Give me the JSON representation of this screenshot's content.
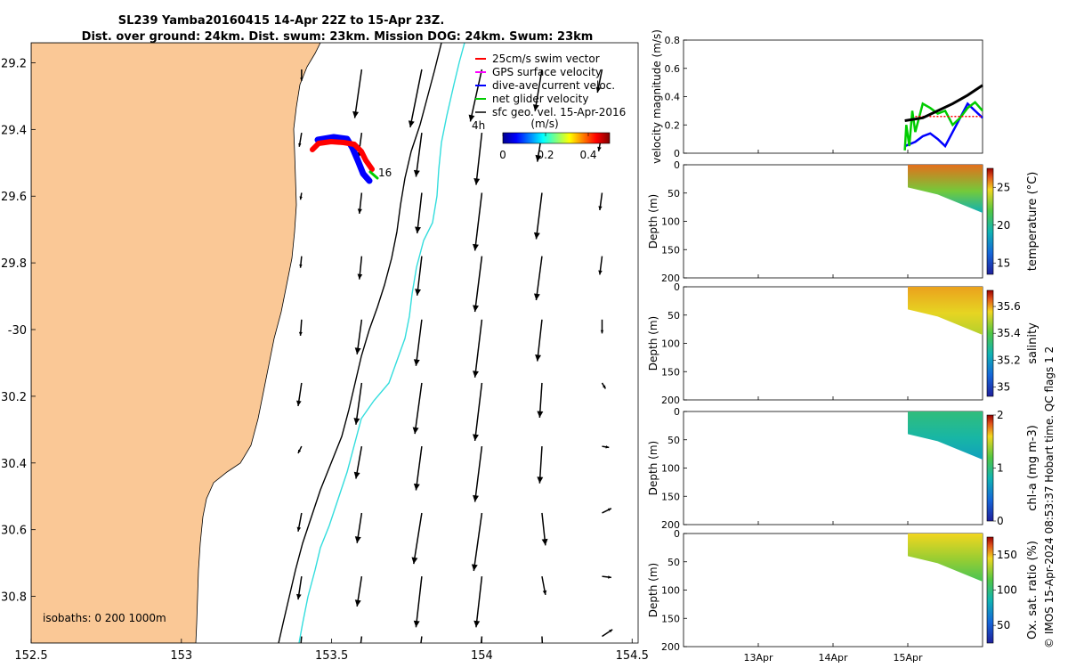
{
  "title": {
    "line1": "SL239 Yamba20160415 14-Apr 22Z to 15-Apr 23Z.",
    "line2": "Dist. over ground: 24km. Dist. swum: 23km. Mission DOG: 24km. Swum: 23km"
  },
  "colors": {
    "land": "#fac896",
    "swim_vector": "#ff0000",
    "gps_velocity": "#ff00ff",
    "dive_avg": "#0000ff",
    "net_glider": "#00cc00",
    "geo_velocity": "#000000",
    "isobath_200": "#000000",
    "isobath_1000": "#33dddd"
  },
  "map": {
    "lon_ticks": [
      "152.5",
      "153",
      "153.5",
      "154",
      "154.5"
    ],
    "lat_ticks": [
      "29.2",
      "29.4",
      "29.6",
      "29.8",
      "-30",
      "30.2",
      "30.4",
      "30.6",
      "30.8"
    ],
    "xlim": [
      152.5,
      154.52
    ],
    "ylim": [
      -30.94,
      -29.14
    ],
    "legend": [
      "25cm/s swim vector",
      "GPS surface velocity",
      "dive-ave current veloc.",
      "net glider velocity",
      "sfc geo. vel. 15-Apr-2016"
    ],
    "track_label": "16",
    "time_label": "4h",
    "colorbar": {
      "unit": "(m/s)",
      "ticks": [
        "0",
        "0.2",
        "0.4"
      ],
      "range": [
        0,
        0.5
      ]
    },
    "isobaths_label": "isobaths: 0   200  1000m",
    "vector_rows": [
      {
        "lat": -29.22,
        "vecs": [
          [
            0,
            -0.1
          ],
          [
            -0.06,
            -0.42
          ],
          [
            -0.1,
            -0.5
          ],
          [
            -0.1,
            -0.45
          ],
          [
            -0.06,
            -0.36
          ],
          [
            -0.04,
            -0.2
          ]
        ]
      },
      {
        "lat": -29.41,
        "vecs": [
          [
            -0.02,
            -0.12
          ],
          [
            -0.03,
            -0.22
          ],
          [
            -0.05,
            -0.38
          ],
          [
            -0.05,
            -0.45
          ],
          [
            -0.04,
            -0.25
          ],
          [
            -0.03,
            -0.16
          ]
        ]
      },
      {
        "lat": -29.59,
        "vecs": [
          [
            -0.01,
            -0.06
          ],
          [
            -0.02,
            -0.18
          ],
          [
            -0.04,
            -0.35
          ],
          [
            -0.06,
            -0.5
          ],
          [
            -0.05,
            -0.4
          ],
          [
            -0.02,
            -0.15
          ]
        ]
      },
      {
        "lat": -29.78,
        "vecs": [
          [
            -0.01,
            -0.1
          ],
          [
            -0.02,
            -0.2
          ],
          [
            -0.04,
            -0.34
          ],
          [
            -0.06,
            -0.48
          ],
          [
            -0.05,
            -0.38
          ],
          [
            -0.02,
            -0.16
          ]
        ]
      },
      {
        "lat": -29.97,
        "vecs": [
          [
            -0.01,
            -0.14
          ],
          [
            -0.04,
            -0.3
          ],
          [
            -0.05,
            -0.4
          ],
          [
            -0.06,
            -0.5
          ],
          [
            -0.04,
            -0.36
          ],
          [
            0,
            -0.12
          ]
        ]
      },
      {
        "lat": -30.16,
        "vecs": [
          [
            -0.03,
            -0.2
          ],
          [
            -0.05,
            -0.36
          ],
          [
            -0.06,
            -0.44
          ],
          [
            -0.06,
            -0.5
          ],
          [
            -0.02,
            -0.3
          ],
          [
            0.03,
            -0.05
          ]
        ]
      },
      {
        "lat": -30.35,
        "vecs": [
          [
            -0.03,
            -0.06
          ],
          [
            -0.05,
            -0.28
          ],
          [
            -0.05,
            -0.38
          ],
          [
            -0.06,
            -0.48
          ],
          [
            -0.02,
            -0.32
          ],
          [
            0.06,
            -0.01
          ]
        ]
      },
      {
        "lat": -30.55,
        "vecs": [
          [
            -0.03,
            -0.16
          ],
          [
            -0.04,
            -0.26
          ],
          [
            -0.07,
            -0.44
          ],
          [
            -0.07,
            -0.5
          ],
          [
            0.03,
            -0.28
          ],
          [
            0.08,
            0.04
          ]
        ]
      },
      {
        "lat": -30.74,
        "vecs": [
          [
            -0.03,
            -0.2
          ],
          [
            -0.04,
            -0.26
          ],
          [
            -0.05,
            -0.44
          ],
          [
            -0.05,
            -0.44
          ],
          [
            0.03,
            -0.16
          ],
          [
            0.08,
            -0.01
          ]
        ]
      },
      {
        "lat": -30.92,
        "vecs": [
          [
            -0.02,
            -0.22
          ],
          [
            -0.03,
            -0.24
          ],
          [
            -0.05,
            -0.4
          ],
          [
            -0.04,
            -0.4
          ],
          [
            0.01,
            -0.2
          ],
          [
            0.09,
            0.06
          ]
        ]
      }
    ],
    "vector_lons": [
      153.4,
      153.6,
      153.8,
      154.0,
      154.2,
      154.4
    ]
  },
  "chart_data": [
    {
      "type": "line",
      "ylabel": "velocity magnitude (m/s)",
      "ylim": [
        0,
        0.8
      ],
      "yticks": [
        "0",
        "0.2",
        "0.4",
        "0.6",
        "0.8"
      ],
      "xlim_days": [
        12.0,
        16.0
      ],
      "series": [
        {
          "color": "#0000ff",
          "x": [
            14.96,
            15.1,
            15.2,
            15.3,
            15.4,
            15.5,
            15.6,
            15.7,
            15.8,
            15.9,
            16.0
          ],
          "y": [
            0.05,
            0.08,
            0.12,
            0.14,
            0.1,
            0.05,
            0.15,
            0.25,
            0.35,
            0.3,
            0.25
          ]
        },
        {
          "color": "#00cc00",
          "x": [
            14.96,
            14.98,
            15.02,
            15.06,
            15.1,
            15.15,
            15.2,
            15.3,
            15.4,
            15.5,
            15.6,
            15.7,
            15.8,
            15.9,
            16.0
          ],
          "y": [
            0.02,
            0.2,
            0.05,
            0.3,
            0.15,
            0.25,
            0.35,
            0.32,
            0.28,
            0.3,
            0.2,
            0.25,
            0.32,
            0.36,
            0.3
          ]
        },
        {
          "color": "#ff0000",
          "x": [
            15.1,
            16.0
          ],
          "y": [
            0.26,
            0.26
          ]
        },
        {
          "color": "#000000",
          "x": [
            14.96,
            15.2,
            15.4,
            15.6,
            15.8,
            16.0
          ],
          "y": [
            0.23,
            0.25,
            0.3,
            0.35,
            0.41,
            0.48
          ]
        }
      ]
    },
    {
      "type": "heatmap",
      "ylabel": "Depth (m)",
      "cbar_label": "temperature (°C)",
      "cbar_ticks": [
        "15",
        "20",
        "25"
      ],
      "cbar_range": [
        13.5,
        27.5
      ],
      "ylim": [
        0,
        200
      ],
      "yticks": [
        "0",
        "50",
        "100",
        "150",
        "200"
      ],
      "surface_value": 26,
      "deep_value": 19
    },
    {
      "type": "heatmap",
      "ylabel": "Depth (m)",
      "cbar_label": "salinity",
      "cbar_ticks": [
        "35",
        "35.2",
        "35.4",
        "35.6"
      ],
      "cbar_range": [
        34.93,
        35.72
      ],
      "ylim": [
        0,
        200
      ],
      "yticks": [
        "0",
        "50",
        "100",
        "150",
        "200"
      ],
      "surface_value": 35.6,
      "deep_value": 35.5
    },
    {
      "type": "heatmap",
      "ylabel": "Depth (m)",
      "cbar_label": "chl-a (mg m-3)",
      "cbar_ticks": [
        "0",
        "1",
        "2"
      ],
      "cbar_range": [
        0,
        2
      ],
      "ylim": [
        0,
        200
      ],
      "yticks": [
        "0",
        "50",
        "100",
        "150",
        "200"
      ],
      "surface_value": 1.0,
      "deep_value": 0.7
    },
    {
      "type": "heatmap",
      "ylabel": "Depth (m)",
      "cbar_label": "Ox. sat. ratio (%)",
      "cbar_ticks": [
        "50",
        "100",
        "150"
      ],
      "cbar_range": [
        25,
        175
      ],
      "ylim": [
        0,
        200
      ],
      "yticks": [
        "0",
        "50",
        "100",
        "150",
        "200"
      ],
      "surface_value": 145,
      "deep_value": 110
    }
  ],
  "time_axis": {
    "ticks": [
      {
        "day": 13,
        "label": "13Apr"
      },
      {
        "day": 14,
        "label": "14Apr"
      },
      {
        "day": 15,
        "label": "15Apr"
      }
    ]
  },
  "side_note": "© IMOS 15-Apr-2024 08:53:37 Hobart time. QC flags 1  2"
}
